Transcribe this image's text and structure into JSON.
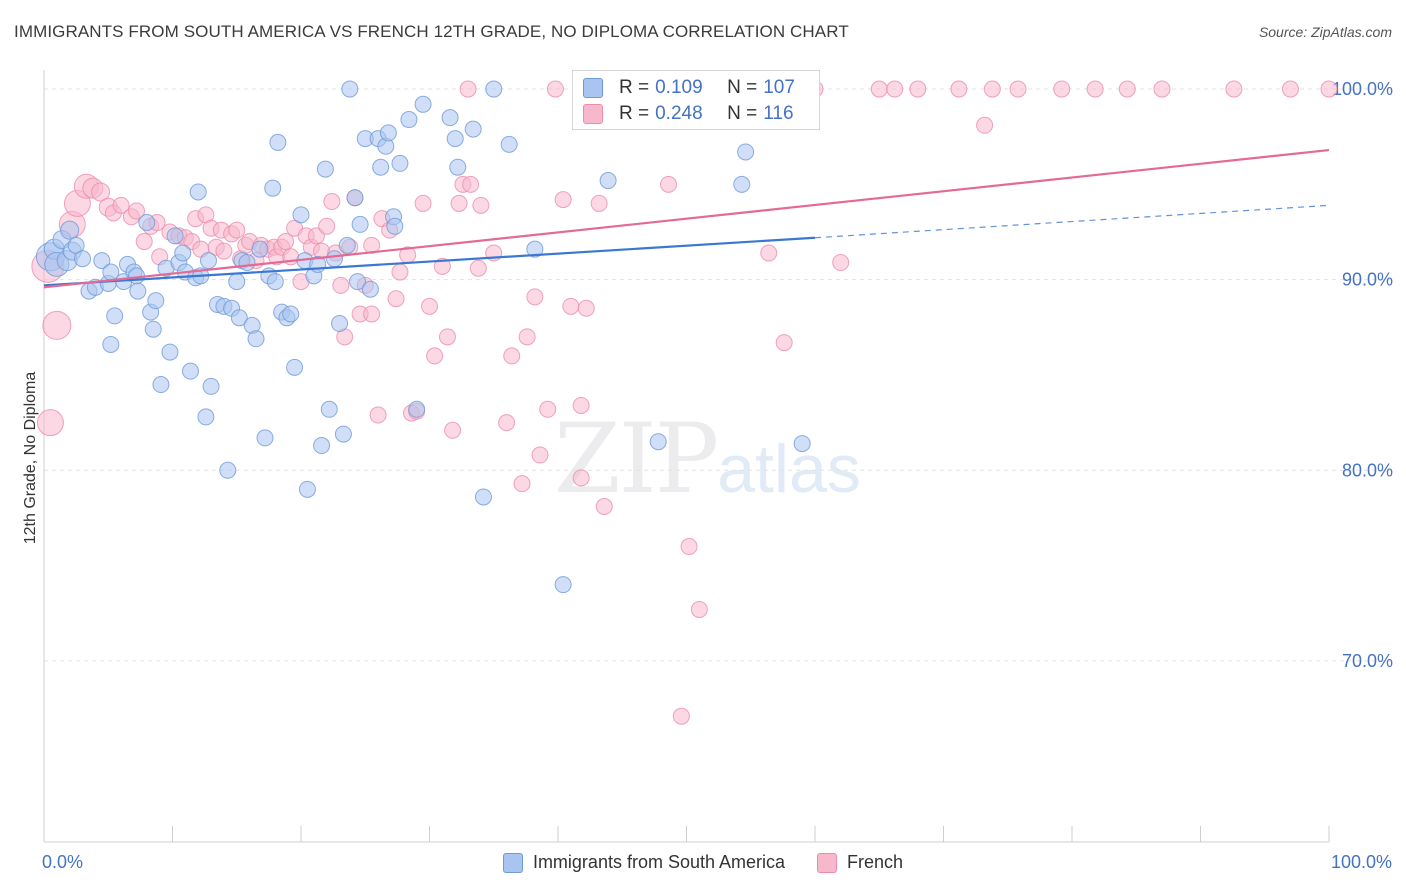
{
  "title": "IMMIGRANTS FROM SOUTH AMERICA VS FRENCH 12TH GRADE, NO DIPLOMA CORRELATION CHART",
  "source": "Source: ZipAtlas.com",
  "watermark": {
    "zip": "ZIP",
    "atlas": "atlas"
  },
  "stats": {
    "blue": {
      "r_label": "R = ",
      "r": "0.109",
      "n_label": "N = ",
      "n": "107"
    },
    "pink": {
      "r_label": "R = ",
      "r": "0.248",
      "n_label": "N = ",
      "n": "116"
    }
  },
  "colors": {
    "blue_fill": "#a9c4f0",
    "blue_stroke": "#6f9ad8",
    "blue_line": "#3b78d1",
    "pink_fill": "#f7b8cc",
    "pink_stroke": "#ec8cab",
    "pink_line": "#e36a94",
    "axis_label": "#4472c4",
    "grid": "#e2e2e2"
  },
  "chart_data": {
    "type": "scatter",
    "title": "IMMIGRANTS FROM SOUTH AMERICA VS FRENCH 12TH GRADE, NO DIPLOMA CORRELATION CHART",
    "xlabel": "",
    "ylabel": "12th Grade, No Diploma",
    "xlim": [
      0,
      100
    ],
    "ylim": [
      60.5,
      101
    ],
    "x_tick_labels": [
      "0.0%",
      "100.0%"
    ],
    "y_ticks": [
      70,
      80,
      90,
      100
    ],
    "y_tick_labels": [
      "70.0%",
      "80.0%",
      "90.0%",
      "100.0%"
    ],
    "legend": [
      "Immigrants from South America",
      "French"
    ],
    "series": [
      {
        "name": "Immigrants from South America",
        "r": 0.109,
        "n": 107,
        "trend": {
          "x": [
            0,
            60
          ],
          "y": [
            89.7,
            92.2
          ],
          "dashed_to": [
            100,
            93.9
          ]
        },
        "points": [
          [
            0.5,
            91.2,
            14
          ],
          [
            0.8,
            91.6,
            10
          ],
          [
            1.0,
            90.8,
            12
          ],
          [
            1.4,
            92.1,
            9
          ],
          [
            1.8,
            91.0,
            10
          ],
          [
            2.0,
            92.6,
            9
          ],
          [
            2.2,
            91.5,
            9
          ],
          [
            2.5,
            91.8,
            8
          ],
          [
            3.0,
            91.1,
            8
          ],
          [
            3.5,
            89.4,
            8
          ],
          [
            4.0,
            89.6,
            8
          ],
          [
            4.5,
            91.0,
            8
          ],
          [
            5.0,
            89.8,
            8
          ],
          [
            5.2,
            90.4,
            8
          ],
          [
            5.5,
            88.1,
            8
          ],
          [
            5.2,
            86.6,
            8
          ],
          [
            6.2,
            89.9,
            8
          ],
          [
            6.5,
            90.8,
            8
          ],
          [
            7.0,
            90.4,
            8
          ],
          [
            7.2,
            90.2,
            8
          ],
          [
            7.3,
            89.4,
            8
          ],
          [
            8.0,
            93.0,
            8
          ],
          [
            8.3,
            88.3,
            8
          ],
          [
            8.5,
            87.4,
            8
          ],
          [
            8.7,
            88.9,
            8
          ],
          [
            9.1,
            84.5,
            8
          ],
          [
            9.5,
            90.6,
            8
          ],
          [
            9.8,
            86.2,
            8
          ],
          [
            10.2,
            92.3,
            8
          ],
          [
            10.5,
            90.9,
            8
          ],
          [
            10.8,
            91.4,
            8
          ],
          [
            11.0,
            90.4,
            8
          ],
          [
            11.4,
            85.2,
            8
          ],
          [
            11.8,
            90.1,
            8
          ],
          [
            12.0,
            94.6,
            8
          ],
          [
            12.2,
            90.2,
            8
          ],
          [
            12.8,
            91.0,
            8
          ],
          [
            12.6,
            82.8,
            8
          ],
          [
            13.0,
            84.4,
            8
          ],
          [
            13.5,
            88.7,
            8
          ],
          [
            14.0,
            88.6,
            8
          ],
          [
            14.3,
            80.0,
            8
          ],
          [
            14.6,
            88.5,
            8
          ],
          [
            15.0,
            89.9,
            8
          ],
          [
            15.2,
            88.0,
            8
          ],
          [
            15.4,
            91.0,
            8
          ],
          [
            15.8,
            90.9,
            8
          ],
          [
            16.2,
            87.6,
            8
          ],
          [
            16.5,
            86.9,
            8
          ],
          [
            16.8,
            91.6,
            8
          ],
          [
            17.2,
            81.7,
            8
          ],
          [
            17.5,
            90.2,
            8
          ],
          [
            17.8,
            94.8,
            8
          ],
          [
            18.0,
            89.9,
            8
          ],
          [
            18.2,
            97.2,
            8
          ],
          [
            18.5,
            88.3,
            8
          ],
          [
            18.9,
            88.0,
            8
          ],
          [
            19.2,
            88.2,
            8
          ],
          [
            19.5,
            85.4,
            8
          ],
          [
            20.0,
            93.4,
            8
          ],
          [
            20.3,
            91.0,
            8
          ],
          [
            20.5,
            79.0,
            8
          ],
          [
            21.0,
            90.2,
            8
          ],
          [
            21.3,
            90.8,
            8
          ],
          [
            21.6,
            81.3,
            8
          ],
          [
            21.9,
            95.8,
            8
          ],
          [
            22.2,
            83.2,
            8
          ],
          [
            22.6,
            91.1,
            8
          ],
          [
            23.0,
            87.7,
            8
          ],
          [
            23.3,
            81.9,
            8
          ],
          [
            23.6,
            91.8,
            8
          ],
          [
            23.8,
            100.0,
            8
          ],
          [
            24.2,
            94.3,
            8
          ],
          [
            24.4,
            89.9,
            8
          ],
          [
            24.6,
            92.9,
            8
          ],
          [
            25.0,
            97.4,
            8
          ],
          [
            25.4,
            89.5,
            8
          ],
          [
            26.0,
            97.4,
            8
          ],
          [
            26.2,
            95.9,
            8
          ],
          [
            26.6,
            97.0,
            8
          ],
          [
            26.8,
            97.7,
            8
          ],
          [
            27.2,
            93.3,
            8
          ],
          [
            27.3,
            92.8,
            8
          ],
          [
            27.7,
            96.1,
            8
          ],
          [
            28.4,
            98.4,
            8
          ],
          [
            29.0,
            83.2,
            8
          ],
          [
            29.5,
            99.2,
            8
          ],
          [
            31.6,
            98.5,
            8
          ],
          [
            32.0,
            97.4,
            8
          ],
          [
            32.2,
            95.9,
            8
          ],
          [
            33.4,
            97.9,
            8
          ],
          [
            34.2,
            78.6,
            8
          ],
          [
            35.0,
            100.0,
            8
          ],
          [
            36.2,
            97.1,
            8
          ],
          [
            38.2,
            91.6,
            8
          ],
          [
            40.4,
            74.0,
            8
          ],
          [
            43.9,
            95.2,
            8
          ],
          [
            47.8,
            81.5,
            8
          ],
          [
            54.3,
            95.0,
            8
          ],
          [
            54.6,
            96.7,
            8
          ],
          [
            59.0,
            81.4,
            8
          ]
        ]
      },
      {
        "name": "French",
        "r": 0.248,
        "n": 116,
        "trend": {
          "x": [
            0,
            100
          ],
          "y": [
            89.6,
            96.8
          ]
        },
        "points": [
          [
            0.3,
            90.7,
            16
          ],
          [
            0.5,
            82.5,
            13
          ],
          [
            1.0,
            87.6,
            14
          ],
          [
            2.2,
            92.9,
            13
          ],
          [
            2.6,
            94.0,
            13
          ],
          [
            3.3,
            94.9,
            12
          ],
          [
            3.8,
            94.8,
            10
          ],
          [
            4.4,
            94.6,
            9
          ],
          [
            5.0,
            93.8,
            9
          ],
          [
            5.4,
            93.5,
            8
          ],
          [
            6.0,
            93.9,
            8
          ],
          [
            6.8,
            93.3,
            8
          ],
          [
            7.2,
            93.6,
            8
          ],
          [
            7.8,
            92.0,
            8
          ],
          [
            8.3,
            92.8,
            8
          ],
          [
            8.8,
            93.0,
            8
          ],
          [
            9.0,
            91.2,
            8
          ],
          [
            9.8,
            92.5,
            8
          ],
          [
            10.5,
            92.3,
            8
          ],
          [
            11.0,
            92.2,
            8
          ],
          [
            11.5,
            92.0,
            8
          ],
          [
            11.8,
            93.2,
            8
          ],
          [
            12.2,
            91.6,
            8
          ],
          [
            12.6,
            93.4,
            8
          ],
          [
            13.0,
            92.7,
            8
          ],
          [
            13.4,
            91.7,
            8
          ],
          [
            13.8,
            92.6,
            8
          ],
          [
            14.0,
            91.5,
            8
          ],
          [
            14.6,
            92.4,
            8
          ],
          [
            15.0,
            92.6,
            8
          ],
          [
            15.3,
            91.1,
            8
          ],
          [
            15.7,
            91.8,
            8
          ],
          [
            16.0,
            92.0,
            8
          ],
          [
            16.5,
            91.0,
            8
          ],
          [
            16.9,
            91.8,
            8
          ],
          [
            17.4,
            91.6,
            8
          ],
          [
            17.9,
            91.7,
            8
          ],
          [
            18.1,
            91.2,
            8
          ],
          [
            18.5,
            91.7,
            8
          ],
          [
            18.8,
            92.0,
            8
          ],
          [
            19.2,
            91.2,
            8
          ],
          [
            19.5,
            92.7,
            8
          ],
          [
            20.0,
            89.9,
            8
          ],
          [
            20.4,
            92.3,
            8
          ],
          [
            20.8,
            91.7,
            8
          ],
          [
            21.2,
            92.3,
            8
          ],
          [
            21.6,
            91.5,
            8
          ],
          [
            22.0,
            92.8,
            8
          ],
          [
            22.4,
            94.1,
            8
          ],
          [
            22.7,
            91.4,
            8
          ],
          [
            23.1,
            89.7,
            8
          ],
          [
            23.4,
            87.0,
            8
          ],
          [
            23.8,
            91.7,
            8
          ],
          [
            24.2,
            94.3,
            8
          ],
          [
            24.6,
            88.2,
            8
          ],
          [
            25.0,
            89.7,
            8
          ],
          [
            25.5,
            88.2,
            8
          ],
          [
            26.0,
            82.9,
            8
          ],
          [
            26.3,
            93.2,
            8
          ],
          [
            26.9,
            92.6,
            8
          ],
          [
            27.4,
            89.0,
            8
          ],
          [
            27.7,
            90.4,
            8
          ],
          [
            28.3,
            91.3,
            8
          ],
          [
            28.6,
            83.0,
            8
          ],
          [
            29.0,
            83.1,
            8
          ],
          [
            29.5,
            94.0,
            8
          ],
          [
            30.0,
            88.6,
            8
          ],
          [
            30.4,
            86.0,
            8
          ],
          [
            31.0,
            90.7,
            8
          ],
          [
            31.4,
            87.0,
            8
          ],
          [
            31.8,
            82.1,
            8
          ],
          [
            32.3,
            94.0,
            8
          ],
          [
            32.6,
            95.0,
            8
          ],
          [
            33.2,
            95.0,
            8
          ],
          [
            33.8,
            90.6,
            8
          ],
          [
            34.0,
            93.9,
            8
          ],
          [
            35.0,
            91.4,
            8
          ],
          [
            36.0,
            82.5,
            8
          ],
          [
            36.4,
            86.0,
            8
          ],
          [
            37.2,
            79.3,
            8
          ],
          [
            37.6,
            87.0,
            8
          ],
          [
            38.2,
            89.1,
            8
          ],
          [
            38.6,
            80.8,
            8
          ],
          [
            39.2,
            83.2,
            8
          ],
          [
            39.8,
            100.0,
            8
          ],
          [
            40.4,
            94.2,
            8
          ],
          [
            41.0,
            88.6,
            8
          ],
          [
            41.8,
            83.4,
            8
          ],
          [
            41.8,
            79.6,
            8
          ],
          [
            42.2,
            88.5,
            8
          ],
          [
            43.2,
            94.0,
            8
          ],
          [
            43.6,
            78.1,
            8
          ],
          [
            44.2,
            100.0,
            8
          ],
          [
            46.4,
            100.0,
            8
          ],
          [
            48.6,
            95.0,
            8
          ],
          [
            50.2,
            76.0,
            8
          ],
          [
            51.0,
            72.7,
            8
          ],
          [
            54.4,
            100.0,
            8
          ],
          [
            56.4,
            91.4,
            8
          ],
          [
            56.6,
            100.0,
            8
          ],
          [
            57.6,
            86.7,
            8
          ],
          [
            60.0,
            100.0,
            8
          ],
          [
            62.0,
            90.9,
            8
          ],
          [
            65.0,
            100.0,
            8
          ],
          [
            66.2,
            100.0,
            8
          ],
          [
            68.0,
            100.0,
            8
          ],
          [
            71.2,
            100.0,
            8
          ],
          [
            73.2,
            98.1,
            8
          ],
          [
            73.8,
            100.0,
            8
          ],
          [
            75.8,
            100.0,
            8
          ],
          [
            79.2,
            100.0,
            8
          ],
          [
            81.8,
            100.0,
            8
          ],
          [
            84.3,
            100.0,
            8
          ],
          [
            87.0,
            100.0,
            8
          ],
          [
            92.6,
            100.0,
            8
          ],
          [
            97.0,
            100.0,
            8
          ],
          [
            100.0,
            100.0,
            8
          ],
          [
            33.0,
            100.0,
            8
          ],
          [
            49.6,
            67.1,
            8
          ],
          [
            25.5,
            91.8,
            8
          ]
        ]
      }
    ]
  }
}
